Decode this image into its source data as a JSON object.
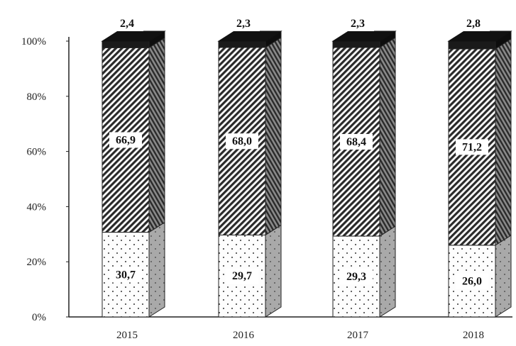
{
  "chart_data": {
    "type": "bar",
    "stacked": true,
    "percent_stacked": true,
    "three_d": true,
    "categories": [
      "2015",
      "2016",
      "2017",
      "2018"
    ],
    "series": [
      {
        "pattern": "dotted",
        "color": "#ffffff",
        "values": [
          30.7,
          29.7,
          29.3,
          26.0
        ],
        "labels": [
          "30,7",
          "29,7",
          "29,3",
          "26,0"
        ]
      },
      {
        "pattern": "diagonal-hatch",
        "color": "#555555",
        "values": [
          66.9,
          68.0,
          68.4,
          71.2
        ],
        "labels": [
          "66,9",
          "68,0",
          "68,4",
          "71,2"
        ]
      },
      {
        "pattern": "solid",
        "color": "#111111",
        "values": [
          2.4,
          2.3,
          2.3,
          2.8
        ],
        "labels": [
          "2,4",
          "2,3",
          "2,3",
          "2,8"
        ]
      }
    ],
    "y_ticks": [
      "0%",
      "20%",
      "40%",
      "60%",
      "80%",
      "100%"
    ],
    "ylim": [
      0,
      100
    ],
    "grid": false,
    "legend": "none"
  }
}
